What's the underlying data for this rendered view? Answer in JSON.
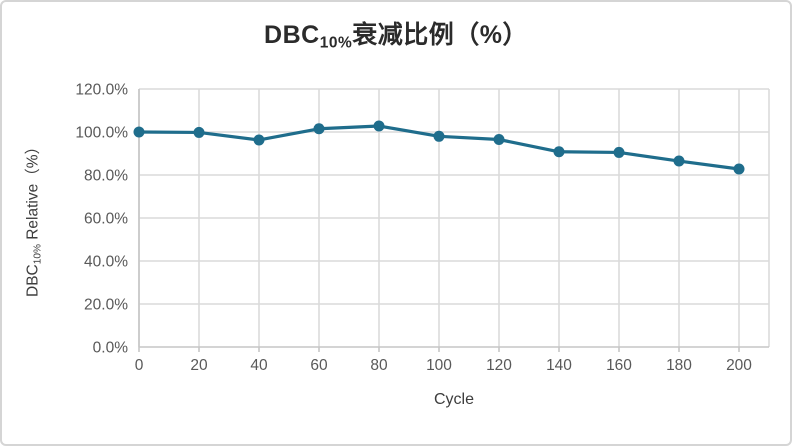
{
  "chart": {
    "title": {
      "prefix": "DBC",
      "subscript": "10%",
      "suffix": "衰减比例（%）"
    },
    "y_axis_title": {
      "prefix": "DBC",
      "subscript": "10%",
      "suffix": " Relative（%）"
    },
    "x_axis_title": "Cycle"
  },
  "chart_data": {
    "type": "line",
    "title": "DBC10%衰减比例（%）",
    "xlabel": "Cycle",
    "ylabel": "DBC10% Relative（%）",
    "x": [
      0,
      20,
      40,
      60,
      80,
      100,
      120,
      140,
      160,
      180,
      200
    ],
    "values": [
      100.0,
      99.8,
      96.3,
      101.5,
      102.8,
      98.0,
      96.5,
      90.8,
      90.5,
      86.5,
      82.8
    ],
    "x_tick_labels": [
      "0",
      "20",
      "40",
      "60",
      "80",
      "100",
      "120",
      "140",
      "160",
      "180",
      "200"
    ],
    "y_tick_labels": [
      "0.0%",
      "20.0%",
      "40.0%",
      "60.0%",
      "80.0%",
      "100.0%",
      "120.0%"
    ],
    "y_tick_values": [
      0,
      20,
      40,
      60,
      80,
      100,
      120
    ],
    "ylim": [
      0,
      120
    ],
    "grid": true,
    "legend": "none",
    "marker": "circle",
    "colors": {
      "line": "#1f6d8c",
      "marker": "#1f6d8c",
      "gridline": "#dadada",
      "axis_line": "#c6c6c6",
      "tick_label": "#595959",
      "axis_title": "#3d3d3d",
      "title": "#2b2b2b",
      "frame_border": "#d5d5d5",
      "background": "#ffffff"
    }
  }
}
